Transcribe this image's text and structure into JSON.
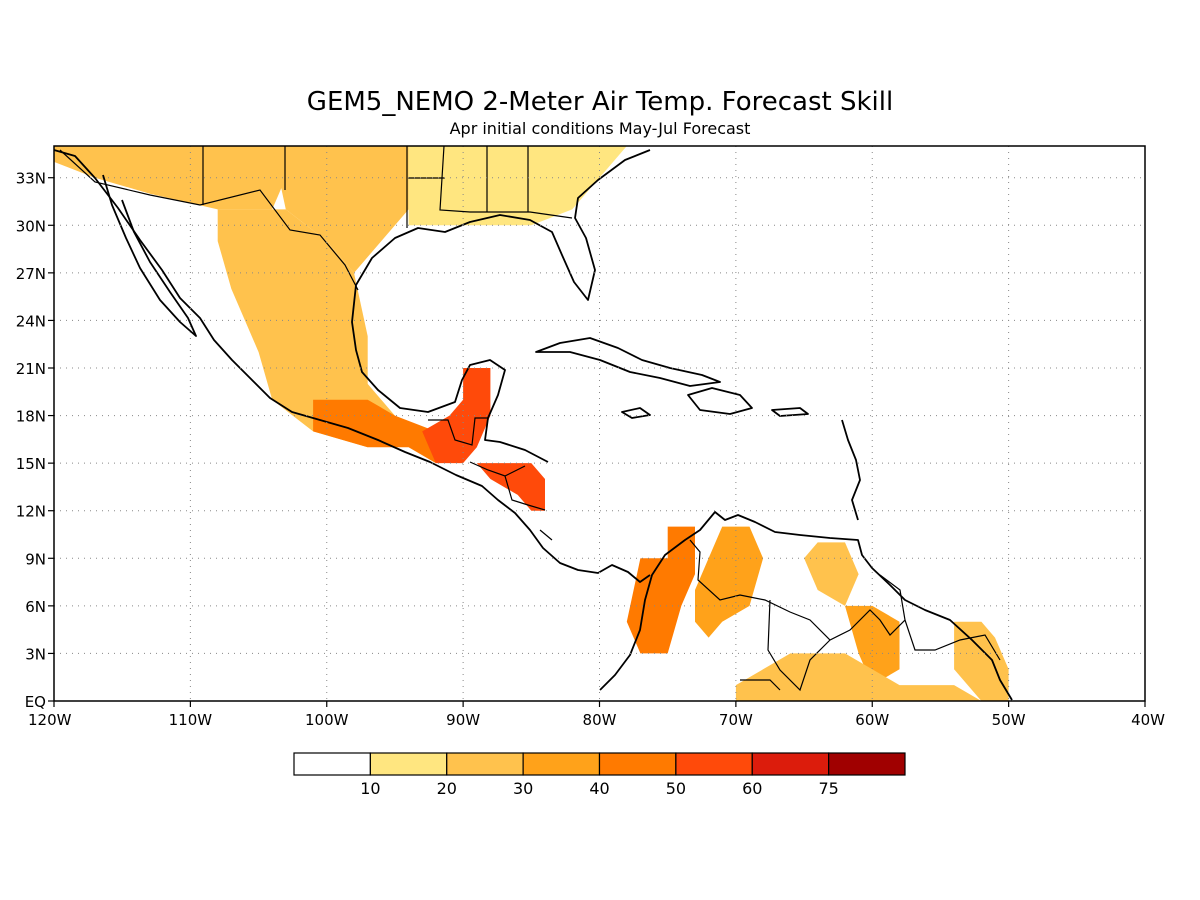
{
  "title": "GEM5_NEMO 2-Meter Air Temp. Forecast Skill",
  "subtitle": "Apr initial conditions  May-Jul Forecast",
  "chart_data": {
    "type": "heatmap",
    "title": "GEM5_NEMO 2-Meter Air Temp. Forecast Skill",
    "subtitle": "Apr initial conditions  May-Jul Forecast",
    "xlabel": "",
    "ylabel": "",
    "xlim": [
      -120,
      -40
    ],
    "ylim": [
      0,
      35
    ],
    "x_ticks": [
      {
        "value": -120,
        "label": "120W"
      },
      {
        "value": -110,
        "label": "110W"
      },
      {
        "value": -100,
        "label": "100W"
      },
      {
        "value": -90,
        "label": "90W"
      },
      {
        "value": -80,
        "label": "80W"
      },
      {
        "value": -70,
        "label": "70W"
      },
      {
        "value": -60,
        "label": "60W"
      },
      {
        "value": -50,
        "label": "50W"
      },
      {
        "value": -40,
        "label": "40W"
      }
    ],
    "y_ticks": [
      {
        "value": 0,
        "label": "EQ"
      },
      {
        "value": 3,
        "label": "3N"
      },
      {
        "value": 6,
        "label": "6N"
      },
      {
        "value": 9,
        "label": "9N"
      },
      {
        "value": 12,
        "label": "12N"
      },
      {
        "value": 15,
        "label": "15N"
      },
      {
        "value": 18,
        "label": "18N"
      },
      {
        "value": 21,
        "label": "21N"
      },
      {
        "value": 24,
        "label": "24N"
      },
      {
        "value": 27,
        "label": "27N"
      },
      {
        "value": 30,
        "label": "30N"
      },
      {
        "value": 33,
        "label": "33N"
      }
    ],
    "grid": true,
    "colorbar": {
      "levels": [
        "10",
        "20",
        "30",
        "40",
        "50",
        "60",
        "75"
      ],
      "colors": [
        "#ffffff",
        "#ffe680",
        "#ffc24d",
        "#ffa21a",
        "#ff7a00",
        "#ff4a0a",
        "#dc1c0c",
        "#a00000"
      ]
    },
    "regions": [
      {
        "name": "southwest-us",
        "skill_band": 2,
        "points": [
          [
            -120,
            35
          ],
          [
            -113,
            35
          ],
          [
            -104,
            35
          ],
          [
            -103,
            33
          ],
          [
            -104,
            31
          ],
          [
            -108,
            31
          ],
          [
            -113,
            32
          ],
          [
            -117,
            33
          ],
          [
            -120,
            34
          ]
        ]
      },
      {
        "name": "south-central-us",
        "skill_band": 2,
        "points": [
          [
            -104,
            35
          ],
          [
            -94,
            35
          ],
          [
            -94,
            31
          ],
          [
            -96,
            29
          ],
          [
            -98,
            27
          ],
          [
            -100,
            29
          ],
          [
            -103,
            31
          ]
        ]
      },
      {
        "name": "southeast-us",
        "skill_band": 1,
        "points": [
          [
            -94,
            35
          ],
          [
            -78,
            35
          ],
          [
            -80,
            33
          ],
          [
            -82,
            31
          ],
          [
            -85,
            30
          ],
          [
            -89,
            30
          ],
          [
            -94,
            30
          ]
        ]
      },
      {
        "name": "texas-mexico-interior",
        "skill_band": 2,
        "points": [
          [
            -108,
            31
          ],
          [
            -103,
            31
          ],
          [
            -100,
            29
          ],
          [
            -98,
            27
          ],
          [
            -97,
            23
          ],
          [
            -97,
            20
          ],
          [
            -95,
            18
          ],
          [
            -97,
            16
          ],
          [
            -101,
            17
          ],
          [
            -104,
            19
          ],
          [
            -105,
            22
          ],
          [
            -107,
            26
          ],
          [
            -108,
            29
          ]
        ]
      },
      {
        "name": "southern-mexico",
        "skill_band": 4,
        "points": [
          [
            -101,
            19
          ],
          [
            -97,
            19
          ],
          [
            -95,
            18
          ],
          [
            -92,
            17
          ],
          [
            -92,
            15
          ],
          [
            -94,
            16
          ],
          [
            -97,
            16
          ],
          [
            -101,
            17
          ]
        ]
      },
      {
        "name": "yucatan-guatemala",
        "skill_band": 5,
        "points": [
          [
            -90,
            21
          ],
          [
            -88,
            21
          ],
          [
            -88,
            18
          ],
          [
            -89,
            16
          ],
          [
            -90,
            15
          ],
          [
            -92,
            15
          ],
          [
            -93,
            17
          ],
          [
            -91,
            18
          ],
          [
            -90,
            19
          ]
        ]
      },
      {
        "name": "honduras-nicaragua",
        "skill_band": 5,
        "points": [
          [
            -89,
            15
          ],
          [
            -85,
            15
          ],
          [
            -84,
            14
          ],
          [
            -84,
            12
          ],
          [
            -85,
            12
          ],
          [
            -86,
            13
          ],
          [
            -88,
            14
          ]
        ]
      },
      {
        "name": "western-colombia",
        "skill_band": 4,
        "points": [
          [
            -77,
            9
          ],
          [
            -75,
            9
          ],
          [
            -75,
            11
          ],
          [
            -73,
            11
          ],
          [
            -73,
            8
          ],
          [
            -74,
            6
          ],
          [
            -75,
            3
          ],
          [
            -77,
            3
          ],
          [
            -78,
            5
          ]
        ]
      },
      {
        "name": "venezuela-andes",
        "skill_band": 3,
        "points": [
          [
            -71,
            11
          ],
          [
            -69,
            11
          ],
          [
            -68,
            9
          ],
          [
            -69,
            6
          ],
          [
            -71,
            5
          ],
          [
            -72,
            4
          ],
          [
            -73,
            5
          ],
          [
            -73,
            7
          ],
          [
            -72,
            9
          ]
        ]
      },
      {
        "name": "orinoco-delta",
        "skill_band": 2,
        "points": [
          [
            -64,
            10
          ],
          [
            -62,
            10
          ],
          [
            -61,
            8
          ],
          [
            -62,
            6
          ],
          [
            -64,
            7
          ],
          [
            -65,
            9
          ]
        ]
      },
      {
        "name": "guyana-highlands",
        "skill_band": 3,
        "points": [
          [
            -62,
            6
          ],
          [
            -60,
            6
          ],
          [
            -58,
            5
          ],
          [
            -58,
            2
          ],
          [
            -60,
            1
          ],
          [
            -61,
            3
          ]
        ]
      },
      {
        "name": "northern-brazil",
        "skill_band": 2,
        "points": [
          [
            -66,
            3
          ],
          [
            -62,
            3
          ],
          [
            -58,
            1
          ],
          [
            -54,
            1
          ],
          [
            -52,
            0
          ],
          [
            -70,
            0
          ],
          [
            -70,
            1
          ]
        ]
      },
      {
        "name": "french-guiana-amapa",
        "skill_band": 2,
        "points": [
          [
            -54,
            5
          ],
          [
            -52,
            5
          ],
          [
            -51,
            4
          ],
          [
            -50,
            2
          ],
          [
            -50,
            0
          ],
          [
            -52,
            0
          ],
          [
            -54,
            2
          ]
        ]
      }
    ]
  },
  "colorbar_labels": [
    "10",
    "20",
    "30",
    "40",
    "50",
    "60",
    "75"
  ]
}
